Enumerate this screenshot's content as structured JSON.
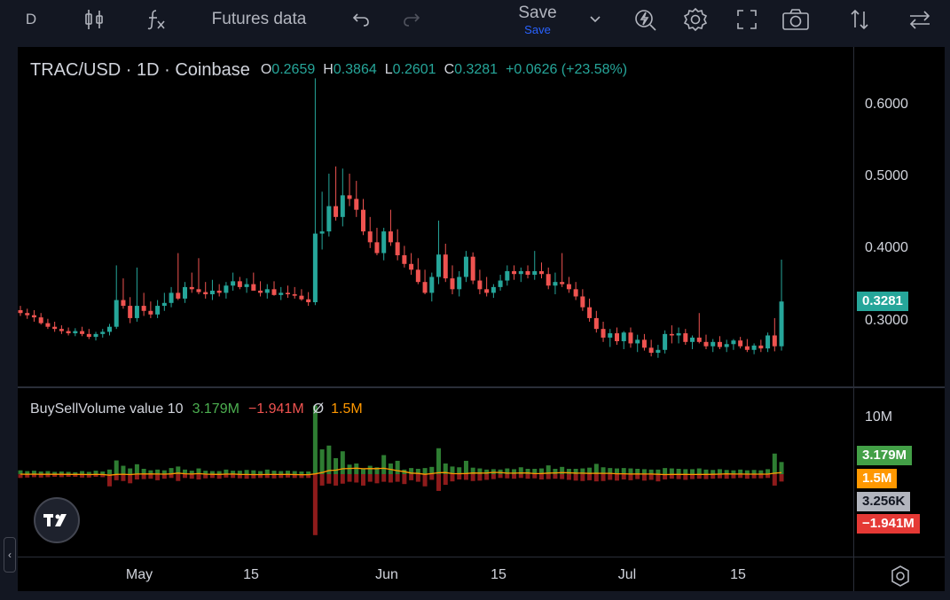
{
  "toolbar": {
    "symbol_letter": "D",
    "indicators_label": "Futures data",
    "save_label": "Save",
    "save_sub_label": "Save",
    "icons": [
      "candles-icon",
      "fx-icon",
      "undo-icon",
      "redo-icon",
      "chevron-down-icon",
      "alert-icon",
      "settings-icon",
      "fullscreen-icon",
      "camera-icon",
      "compare-arrows-icon",
      "swap-arrows-icon"
    ]
  },
  "legend": {
    "symbol": "TRAC/USD · 1D · Coinbase",
    "open_key": "O",
    "open": "0.2659",
    "high_key": "H",
    "high": "0.3864",
    "low_key": "L",
    "low": "0.2601",
    "close_key": "C",
    "close": "0.3281",
    "change": "+0.0626 (+23.58%)"
  },
  "volume_legend": {
    "name": "BuySellVolume value 10",
    "buy": "3.179M",
    "sell": "−1.941M",
    "avg_symbol": "Ø",
    "avg": "1.5M"
  },
  "price_axis": {
    "ticks": [
      "0.6000",
      "0.5000",
      "0.4000",
      "0.3000"
    ],
    "current_price": "0.3281",
    "current_color": "#26a69a"
  },
  "volume_axis": {
    "tick": "10M",
    "tags": [
      {
        "label": "3.179M",
        "color": "#43a047"
      },
      {
        "label": "1.5M",
        "color": "#ff9800"
      },
      {
        "label": "3.256K",
        "color": "#b2b5be"
      },
      {
        "label": "−1.941M",
        "color": "#e53935"
      }
    ]
  },
  "time_axis": {
    "ticks": [
      "May",
      "15",
      "Jun",
      "15",
      "Jul",
      "15"
    ]
  },
  "colors": {
    "up": "#26a69a",
    "down": "#ef5350",
    "buy_volume": "#2e7d32",
    "sell_volume": "#8e1b1b",
    "average_line": "#ff9800"
  },
  "chart_data": {
    "type": "candlestick",
    "title": "TRAC/USD · 1D · Coinbase",
    "xlabel": "",
    "ylabel": "",
    "ylim": [
      0.225,
      0.64
    ],
    "first_date": "2024-04-05",
    "interval": "1D",
    "candles": [
      [
        0.316,
        0.322,
        0.308,
        0.312
      ],
      [
        0.312,
        0.318,
        0.304,
        0.309
      ],
      [
        0.309,
        0.316,
        0.3,
        0.306
      ],
      [
        0.306,
        0.312,
        0.296,
        0.298
      ],
      [
        0.298,
        0.304,
        0.29,
        0.293
      ],
      [
        0.293,
        0.3,
        0.286,
        0.29
      ],
      [
        0.29,
        0.295,
        0.283,
        0.287
      ],
      [
        0.287,
        0.292,
        0.281,
        0.284
      ],
      [
        0.284,
        0.291,
        0.28,
        0.287
      ],
      [
        0.287,
        0.293,
        0.28,
        0.283
      ],
      [
        0.283,
        0.29,
        0.276,
        0.279
      ],
      [
        0.279,
        0.286,
        0.274,
        0.283
      ],
      [
        0.283,
        0.29,
        0.278,
        0.286
      ],
      [
        0.286,
        0.297,
        0.281,
        0.293
      ],
      [
        0.293,
        0.378,
        0.29,
        0.33
      ],
      [
        0.33,
        0.36,
        0.318,
        0.322
      ],
      [
        0.322,
        0.334,
        0.298,
        0.305
      ],
      [
        0.305,
        0.375,
        0.3,
        0.322
      ],
      [
        0.322,
        0.34,
        0.308,
        0.315
      ],
      [
        0.315,
        0.328,
        0.305,
        0.31
      ],
      [
        0.31,
        0.33,
        0.305,
        0.322
      ],
      [
        0.322,
        0.34,
        0.315,
        0.326
      ],
      [
        0.326,
        0.348,
        0.32,
        0.34
      ],
      [
        0.34,
        0.395,
        0.33,
        0.332
      ],
      [
        0.332,
        0.355,
        0.326,
        0.348
      ],
      [
        0.348,
        0.368,
        0.34,
        0.345
      ],
      [
        0.345,
        0.388,
        0.338,
        0.341
      ],
      [
        0.341,
        0.355,
        0.332,
        0.338
      ],
      [
        0.338,
        0.358,
        0.33,
        0.343
      ],
      [
        0.343,
        0.352,
        0.335,
        0.34
      ],
      [
        0.34,
        0.355,
        0.332,
        0.35
      ],
      [
        0.35,
        0.368,
        0.343,
        0.356
      ],
      [
        0.356,
        0.362,
        0.345,
        0.348
      ],
      [
        0.348,
        0.36,
        0.34,
        0.352
      ],
      [
        0.352,
        0.368,
        0.346,
        0.343
      ],
      [
        0.343,
        0.356,
        0.335,
        0.34
      ],
      [
        0.34,
        0.352,
        0.332,
        0.345
      ],
      [
        0.345,
        0.356,
        0.336,
        0.337
      ],
      [
        0.337,
        0.348,
        0.33,
        0.34
      ],
      [
        0.34,
        0.35,
        0.333,
        0.338
      ],
      [
        0.338,
        0.348,
        0.332,
        0.336
      ],
      [
        0.336,
        0.345,
        0.329,
        0.331
      ],
      [
        0.331,
        0.341,
        0.322,
        0.327
      ],
      [
        0.327,
        0.637,
        0.323,
        0.422
      ],
      [
        0.422,
        0.48,
        0.4,
        0.425
      ],
      [
        0.425,
        0.505,
        0.418,
        0.46
      ],
      [
        0.46,
        0.515,
        0.44,
        0.445
      ],
      [
        0.445,
        0.512,
        0.432,
        0.475
      ],
      [
        0.475,
        0.505,
        0.46,
        0.47
      ],
      [
        0.47,
        0.495,
        0.445,
        0.455
      ],
      [
        0.455,
        0.47,
        0.42,
        0.425
      ],
      [
        0.425,
        0.445,
        0.402,
        0.41
      ],
      [
        0.41,
        0.43,
        0.392,
        0.395
      ],
      [
        0.395,
        0.43,
        0.385,
        0.425
      ],
      [
        0.425,
        0.455,
        0.405,
        0.41
      ],
      [
        0.41,
        0.428,
        0.385,
        0.392
      ],
      [
        0.392,
        0.405,
        0.375,
        0.38
      ],
      [
        0.38,
        0.395,
        0.365,
        0.372
      ],
      [
        0.372,
        0.388,
        0.352,
        0.355
      ],
      [
        0.355,
        0.372,
        0.338,
        0.34
      ],
      [
        0.34,
        0.368,
        0.328,
        0.362
      ],
      [
        0.362,
        0.44,
        0.352,
        0.393
      ],
      [
        0.393,
        0.408,
        0.355,
        0.36
      ],
      [
        0.36,
        0.378,
        0.338,
        0.345
      ],
      [
        0.345,
        0.37,
        0.335,
        0.362
      ],
      [
        0.362,
        0.398,
        0.355,
        0.39
      ],
      [
        0.39,
        0.396,
        0.352,
        0.357
      ],
      [
        0.357,
        0.372,
        0.338,
        0.345
      ],
      [
        0.345,
        0.362,
        0.335,
        0.34
      ],
      [
        0.34,
        0.352,
        0.333,
        0.348
      ],
      [
        0.348,
        0.365,
        0.343,
        0.357
      ],
      [
        0.357,
        0.378,
        0.35,
        0.37
      ],
      [
        0.37,
        0.378,
        0.358,
        0.366
      ],
      [
        0.366,
        0.375,
        0.355,
        0.37
      ],
      [
        0.37,
        0.378,
        0.36,
        0.365
      ],
      [
        0.365,
        0.398,
        0.358,
        0.37
      ],
      [
        0.37,
        0.382,
        0.36,
        0.366
      ],
      [
        0.366,
        0.375,
        0.345,
        0.35
      ],
      [
        0.35,
        0.368,
        0.338,
        0.355
      ],
      [
        0.355,
        0.395,
        0.348,
        0.352
      ],
      [
        0.352,
        0.362,
        0.34,
        0.345
      ],
      [
        0.345,
        0.355,
        0.33,
        0.335
      ],
      [
        0.335,
        0.345,
        0.315,
        0.32
      ],
      [
        0.32,
        0.332,
        0.3,
        0.305
      ],
      [
        0.305,
        0.315,
        0.285,
        0.29
      ],
      [
        0.29,
        0.3,
        0.272,
        0.278
      ],
      [
        0.278,
        0.29,
        0.265,
        0.284
      ],
      [
        0.284,
        0.292,
        0.268,
        0.273
      ],
      [
        0.273,
        0.287,
        0.262,
        0.285
      ],
      [
        0.285,
        0.292,
        0.264,
        0.27
      ],
      [
        0.27,
        0.282,
        0.258,
        0.275
      ],
      [
        0.275,
        0.283,
        0.26,
        0.264
      ],
      [
        0.264,
        0.275,
        0.252,
        0.257
      ],
      [
        0.257,
        0.268,
        0.25,
        0.261
      ],
      [
        0.261,
        0.288,
        0.256,
        0.283
      ],
      [
        0.283,
        0.295,
        0.27,
        0.281
      ],
      [
        0.281,
        0.292,
        0.27,
        0.284
      ],
      [
        0.284,
        0.29,
        0.268,
        0.272
      ],
      [
        0.272,
        0.281,
        0.262,
        0.278
      ],
      [
        0.278,
        0.312,
        0.27,
        0.272
      ],
      [
        0.272,
        0.282,
        0.262,
        0.266
      ],
      [
        0.266,
        0.276,
        0.258,
        0.272
      ],
      [
        0.272,
        0.28,
        0.262,
        0.265
      ],
      [
        0.265,
        0.275,
        0.258,
        0.269
      ],
      [
        0.269,
        0.276,
        0.261,
        0.274
      ],
      [
        0.274,
        0.279,
        0.263,
        0.266
      ],
      [
        0.266,
        0.276,
        0.258,
        0.261
      ],
      [
        0.261,
        0.27,
        0.255,
        0.267
      ],
      [
        0.267,
        0.275,
        0.258,
        0.263
      ],
      [
        0.263,
        0.285,
        0.258,
        0.281
      ],
      [
        0.281,
        0.305,
        0.259,
        0.266
      ],
      [
        0.266,
        0.386,
        0.26,
        0.328
      ]
    ],
    "buy_volume": [
      1.0,
      0.8,
      0.9,
      0.7,
      0.8,
      0.6,
      0.7,
      0.6,
      0.5,
      0.8,
      0.6,
      0.9,
      0.7,
      1.2,
      3.6,
      2.2,
      1.5,
      2.6,
      1.4,
      1.0,
      1.2,
      1.0,
      1.6,
      2.0,
      1.2,
      0.9,
      1.5,
      0.9,
      0.8,
      0.8,
      1.2,
      0.9,
      0.9,
      1.1,
      1.0,
      0.8,
      1.2,
      0.9,
      0.8,
      0.9,
      0.8,
      0.7,
      0.7,
      18.0,
      6.5,
      7.5,
      4.2,
      6.0,
      2.5,
      2.8,
      1.5,
      2.2,
      1.8,
      5.0,
      2.8,
      3.5,
      1.2,
      1.6,
      1.4,
      1.6,
      1.9,
      6.8,
      2.8,
      2.0,
      1.8,
      3.5,
      1.7,
      1.5,
      1.2,
      1.3,
      1.2,
      1.5,
      1.3,
      1.8,
      1.4,
      1.4,
      1.5,
      2.3,
      1.4,
      1.9,
      1.4,
      1.4,
      1.5,
      1.7,
      2.7,
      1.8,
      1.6,
      1.5,
      1.6,
      1.5,
      1.4,
      1.3,
      1.2,
      1.2,
      1.6,
      1.5,
      1.4,
      1.3,
      1.3,
      1.5,
      1.2,
      1.1,
      1.3,
      1.1,
      1.0,
      1.2,
      1.0,
      1.1,
      1.0,
      1.3,
      5.4,
      3.179
    ],
    "sell_volume": [
      1.0,
      0.9,
      0.8,
      0.9,
      0.8,
      0.7,
      0.8,
      0.7,
      0.7,
      0.9,
      0.9,
      0.7,
      0.8,
      3.2,
      1.6,
      1.8,
      2.4,
      1.4,
      1.3,
      1.2,
      1.6,
      1.2,
      1.0,
      1.8,
      1.0,
      1.2,
      1.4,
      1.1,
      1.0,
      1.2,
      0.9,
      1.0,
      1.1,
      1.2,
      1.1,
      1.0,
      1.0,
      1.1,
      1.0,
      0.9,
      1.0,
      1.0,
      1.0,
      16.0,
      3.0,
      2.5,
      3.0,
      2.5,
      2.0,
      2.2,
      3.0,
      2.0,
      2.4,
      2.0,
      2.2,
      2.0,
      2.6,
      1.6,
      2.0,
      3.2,
      1.5,
      4.4,
      2.8,
      1.9,
      1.4,
      1.5,
      1.8,
      1.7,
      1.5,
      1.3,
      1.0,
      1.1,
      1.2,
      1.0,
      1.2,
      1.1,
      1.4,
      1.3,
      1.2,
      1.3,
      1.5,
      1.7,
      1.8,
      1.6,
      1.9,
      1.8,
      1.5,
      1.7,
      1.4,
      1.6,
      1.3,
      1.7,
      1.5,
      1.9,
      1.4,
      1.2,
      1.3,
      1.5,
      1.3,
      1.2,
      1.3,
      1.2,
      1.1,
      1.2,
      1.1,
      1.0,
      1.2,
      1.1,
      1.1,
      1.0,
      3.0,
      1.941
    ],
    "avg_line_note": "10-period average of net volume (orange)"
  }
}
